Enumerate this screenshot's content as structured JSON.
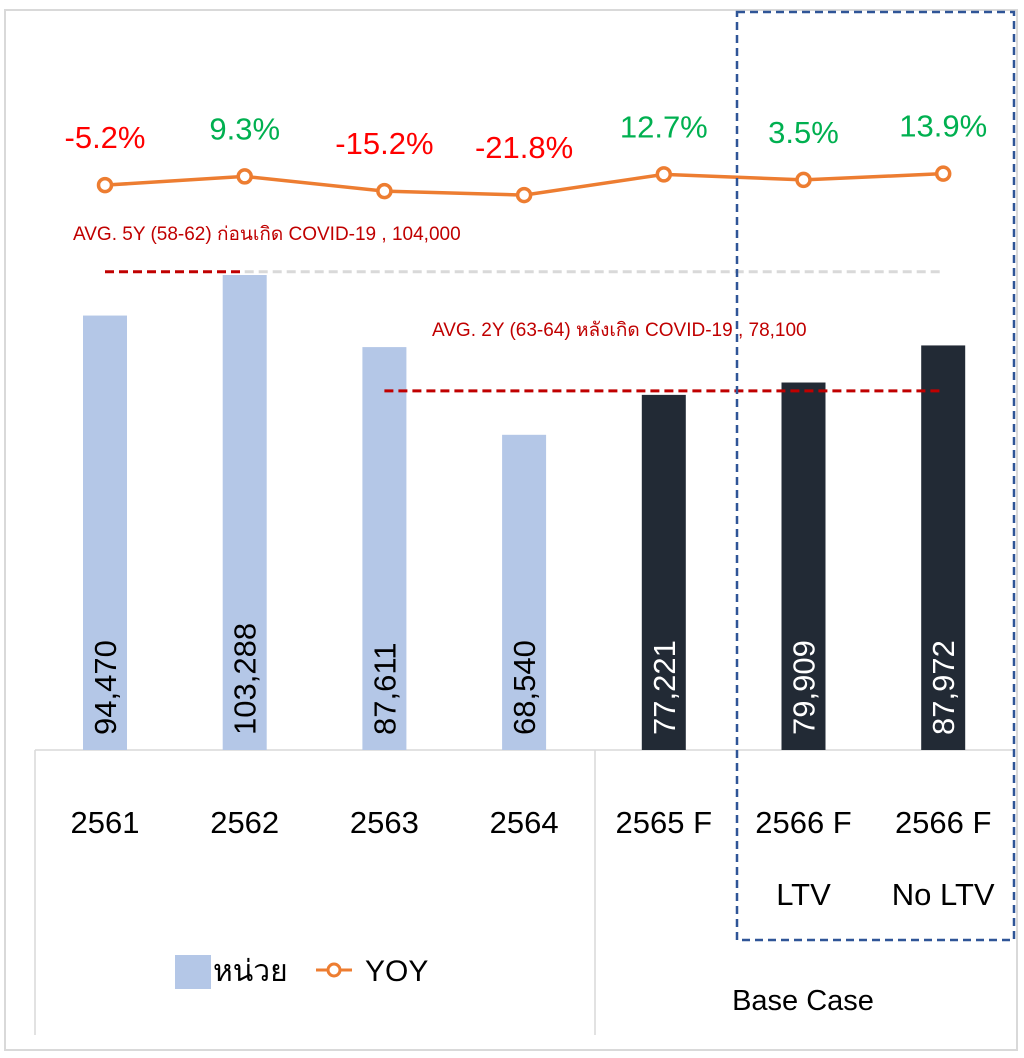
{
  "chart_data": {
    "type": "bar",
    "categories": [
      {
        "year": "2561",
        "sub": ""
      },
      {
        "year": "2562",
        "sub": ""
      },
      {
        "year": "2563",
        "sub": ""
      },
      {
        "year": "2564",
        "sub": ""
      },
      {
        "year": "2565 F",
        "sub": ""
      },
      {
        "year": "2566 F",
        "sub": "LTV"
      },
      {
        "year": "2566 F",
        "sub": "No LTV"
      }
    ],
    "series": [
      {
        "name": "หน่วย",
        "type": "bar",
        "values": [
          94470,
          103288,
          87611,
          68540,
          77221,
          79909,
          87972
        ],
        "labels": [
          "94,470",
          "103,288",
          "87,611",
          "68,540",
          "77,221",
          "79,909",
          "87,972"
        ],
        "colors": [
          "#b4c7e7",
          "#b4c7e7",
          "#b4c7e7",
          "#b4c7e7",
          "#222a35",
          "#222a35",
          "#222a35"
        ],
        "label_colors": [
          "#000000",
          "#000000",
          "#000000",
          "#000000",
          "#ffffff",
          "#ffffff",
          "#ffffff"
        ]
      },
      {
        "name": "YOY",
        "type": "line",
        "color": "#ed7d31",
        "values": [
          -5.2,
          9.3,
          -15.2,
          -21.8,
          12.7,
          3.5,
          13.9
        ],
        "labels": [
          "-5.2%",
          "9.3%",
          "-15.2%",
          "-21.8%",
          "12.7%",
          "3.5%",
          "13.9%"
        ]
      }
    ],
    "positive_color": "#00b050",
    "negative_color": "#ff0000",
    "reference_lines": [
      {
        "label": "AVG. 5Y (58-62) ก่อนเกิด COVID-19 ,  104,000",
        "value": 104000,
        "color": "#c00000"
      },
      {
        "label": "AVG. 2Y (63-64) หลังเกิด COVID-19 ,  78,100",
        "value": 78100,
        "color": "#c00000"
      }
    ],
    "group_label": "Base Case",
    "legend": {
      "bar": "หน่วย",
      "line": "YOY",
      "placement": "bottom-left"
    },
    "highlight_box_color": "#2f5597",
    "grid": false
  }
}
